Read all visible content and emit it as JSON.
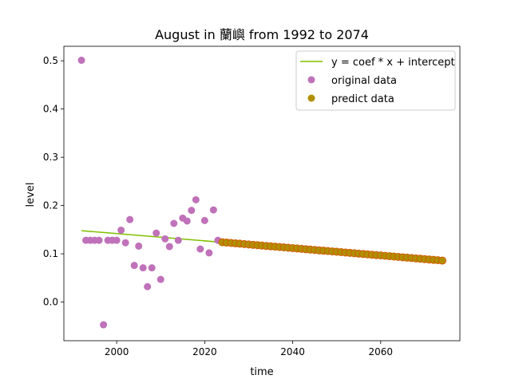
{
  "chart_data": {
    "type": "scatter",
    "title": "August in 蘭嶼 from 1992 to 2074",
    "xlabel": "time",
    "ylabel": "level",
    "xlim": [
      1988,
      2078
    ],
    "ylim": [
      -0.08,
      0.53
    ],
    "xticks": [
      2000,
      2020,
      2040,
      2060
    ],
    "yticks": [
      0.0,
      0.1,
      0.2,
      0.3,
      0.4,
      0.5
    ],
    "xtick_labels": [
      "2000",
      "2020",
      "2040",
      "2060"
    ],
    "ytick_labels": [
      "0.0",
      "0.1",
      "0.2",
      "0.3",
      "0.4",
      "0.5"
    ],
    "grid": false,
    "legend_position": "top-right",
    "series": [
      {
        "name": "y = coef * x + intercept",
        "kind": "line",
        "color": "#7fbf00",
        "x": [
          1992,
          2074
        ],
        "y": [
          0.148,
          0.086
        ]
      },
      {
        "name": "original data",
        "kind": "scatter",
        "color": "#bf72b9",
        "x": [
          1992,
          1993,
          1994,
          1995,
          1996,
          1997,
          1998,
          1999,
          2000,
          2001,
          2002,
          2003,
          2004,
          2005,
          2006,
          2007,
          2008,
          2009,
          2010,
          2011,
          2012,
          2013,
          2014,
          2015,
          2016,
          2017,
          2018,
          2019,
          2020,
          2021,
          2022,
          2023
        ],
        "y": [
          0.501,
          0.128,
          0.128,
          0.128,
          0.128,
          -0.047,
          0.128,
          0.128,
          0.128,
          0.149,
          0.123,
          0.171,
          0.076,
          0.116,
          0.071,
          0.032,
          0.071,
          0.143,
          0.047,
          0.131,
          0.115,
          0.163,
          0.128,
          0.174,
          0.168,
          0.19,
          0.212,
          0.11,
          0.169,
          0.102,
          0.191,
          0.128
        ]
      },
      {
        "name": "predict data",
        "kind": "scatter",
        "color": "#b09000",
        "edge_color": "#d05a00",
        "x_start": 2024,
        "x_end": 2074,
        "y_start": 0.124,
        "y_end": 0.086
      }
    ]
  }
}
